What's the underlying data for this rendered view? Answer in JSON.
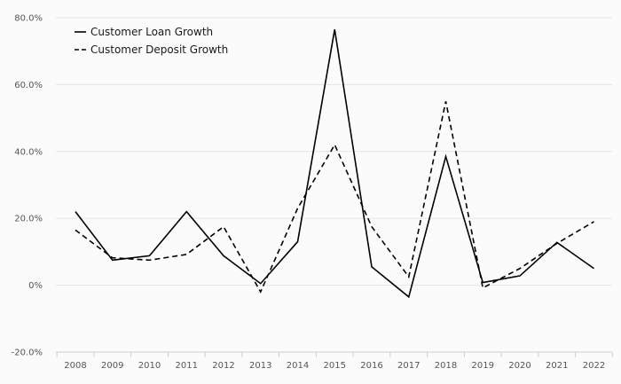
{
  "chart_data": {
    "type": "line",
    "title": "",
    "xlabel": "",
    "ylabel": "",
    "categories": [
      "2008",
      "2009",
      "2010",
      "2011",
      "2012",
      "2013",
      "2014",
      "2015",
      "2016",
      "2017",
      "2018",
      "2019",
      "2020",
      "2021",
      "2022"
    ],
    "ylim": [
      -20,
      80
    ],
    "yticks": [
      -20,
      0,
      20,
      40,
      60,
      80
    ],
    "ytick_labels": [
      "-20.0%",
      "0%",
      "20.0%",
      "40.0%",
      "60.0%",
      "80.0%"
    ],
    "grid": "horizontal",
    "legend_position": "top-left",
    "series": [
      {
        "name": "Customer Loan Growth",
        "style": "solid",
        "color": "#000000",
        "values": [
          22.0,
          7.5,
          8.8,
          22.0,
          8.8,
          0.5,
          13.0,
          76.5,
          5.5,
          -3.5,
          38.5,
          0.8,
          2.8,
          12.8,
          5.0
        ]
      },
      {
        "name": "Customer Deposit Growth",
        "style": "dashed",
        "color": "#000000",
        "values": [
          16.5,
          8.2,
          7.5,
          9.2,
          17.5,
          -2.0,
          23.0,
          42.0,
          17.5,
          2.5,
          55.0,
          -0.8,
          5.0,
          12.5,
          19.0
        ]
      }
    ]
  }
}
